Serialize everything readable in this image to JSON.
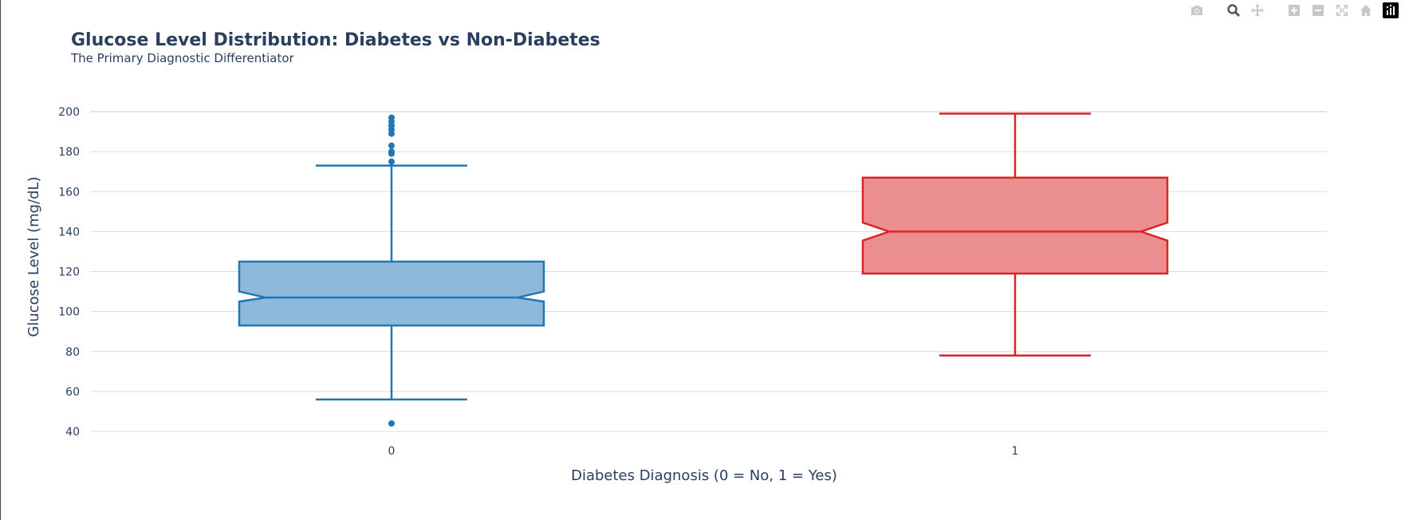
{
  "chart_data": {
    "type": "box",
    "title": "Glucose Level Distribution: Diabetes vs Non-Diabetes",
    "subtitle": "The Primary Diagnostic Differentiator",
    "xlabel": "Diabetes Diagnosis (0 = No, 1 = Yes)",
    "ylabel": "Glucose Level (mg/dL)",
    "categories": [
      "0",
      "1"
    ],
    "yticks": [
      40,
      60,
      80,
      100,
      120,
      140,
      160,
      180,
      200
    ],
    "ylim": [
      36,
      203
    ],
    "grid": true,
    "legend": "none",
    "notched": true,
    "series": [
      {
        "category": "0",
        "color": "#1f77b4",
        "fill": "#8fb9da",
        "min": 56,
        "q1": 93,
        "median": 107,
        "q3": 125,
        "max": 173,
        "notch_low": 105,
        "notch_high": 110,
        "outliers": [
          44,
          175,
          179,
          180,
          183,
          189,
          191,
          193,
          195,
          197
        ]
      },
      {
        "category": "1",
        "color": "#d62728",
        "fill": "#ea8e90",
        "min": 78,
        "q1": 119,
        "median": 140,
        "q3": 167,
        "max": 199,
        "notch_low": 135.5,
        "notch_high": 144.5,
        "outliers": []
      }
    ]
  },
  "modebar": {
    "icons": [
      "camera-icon",
      "zoom-icon",
      "pan-icon",
      "zoom-in-icon",
      "zoom-out-icon",
      "autoscale-icon",
      "home-icon",
      "plotly-logo-icon"
    ]
  }
}
